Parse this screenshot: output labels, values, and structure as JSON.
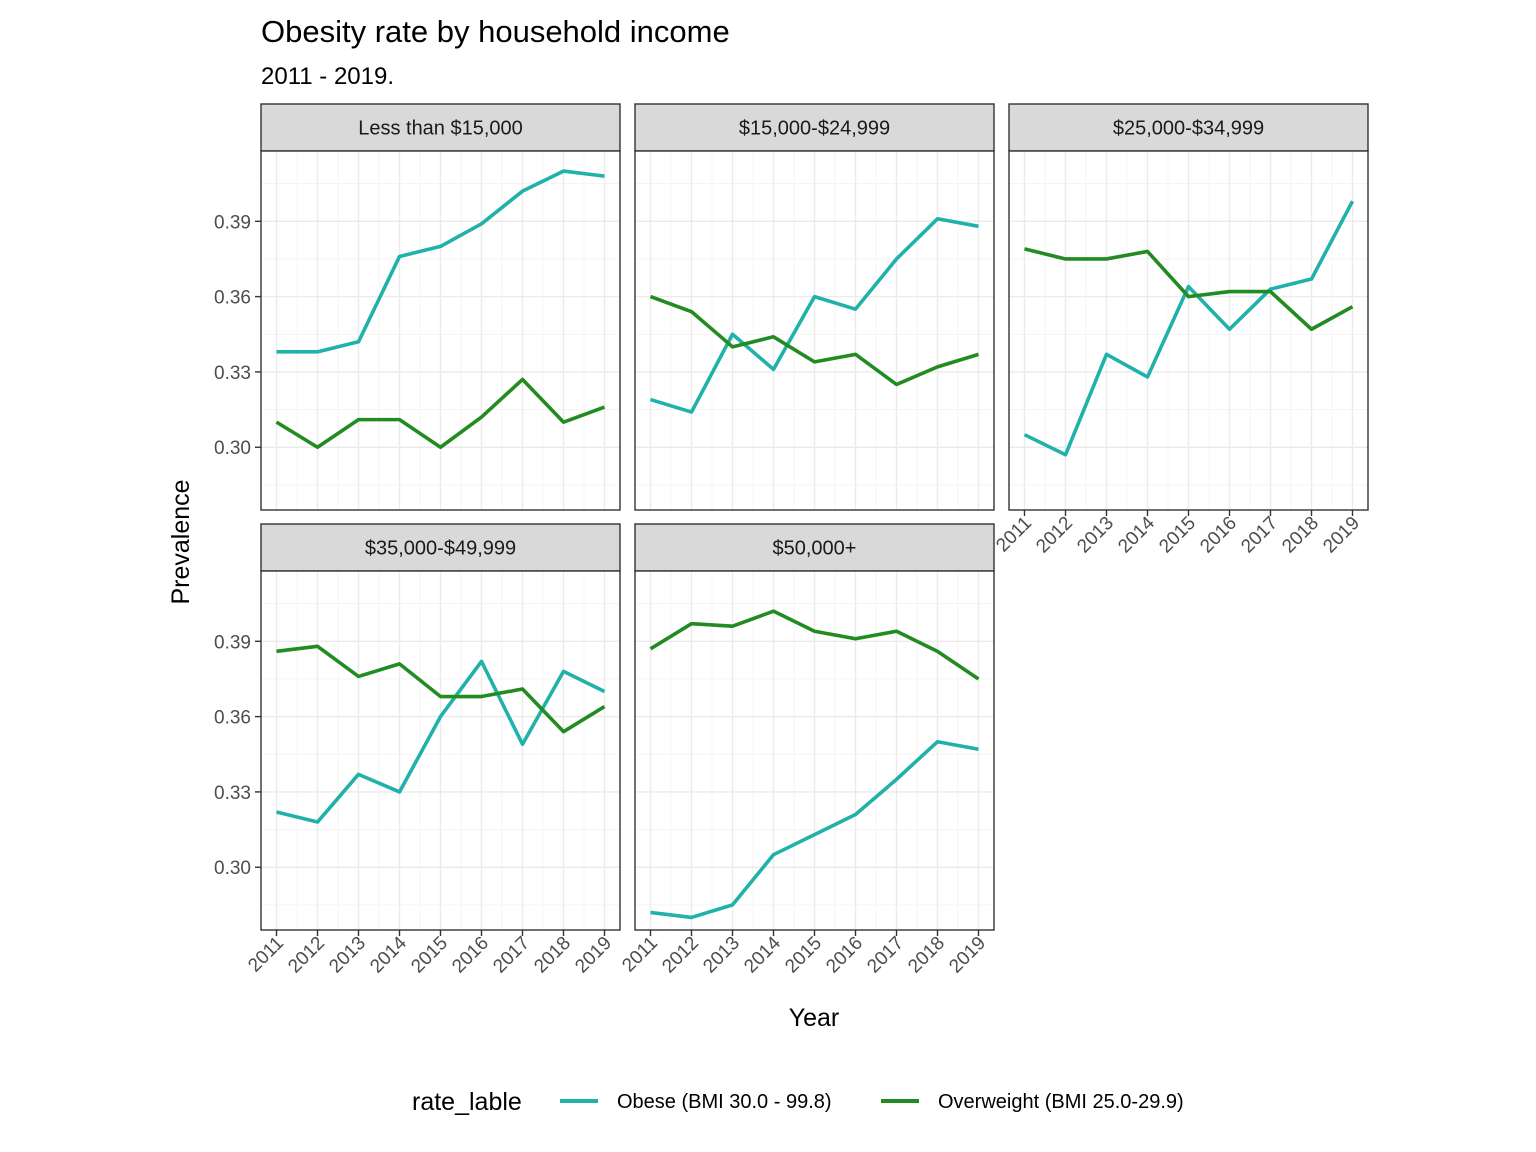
{
  "chart_data": {
    "type": "line",
    "title": "Obesity rate by household income",
    "subtitle": "2011 - 2019.",
    "xlabel": "Year",
    "ylabel": "Prevalence",
    "x": [
      "2011",
      "2012",
      "2013",
      "2014",
      "2015",
      "2016",
      "2017",
      "2018",
      "2019"
    ],
    "y_ticks": [
      "0.30",
      "0.33",
      "0.36",
      "0.39"
    ],
    "ylim": [
      0.275,
      0.418
    ],
    "grid": true,
    "legend": {
      "title": "rate_lable",
      "position": "bottom",
      "entries": [
        {
          "name": "Obese (BMI 30.0 - 99.8)",
          "color": "#20B2AA"
        },
        {
          "name": "Overweight (BMI 25.0-29.9)",
          "color": "#228B22"
        }
      ]
    },
    "facets": [
      {
        "label": "Less than $15,000",
        "series": [
          {
            "name": "Obese (BMI 30.0 - 99.8)",
            "values": [
              0.338,
              0.338,
              0.342,
              0.376,
              0.38,
              0.389,
              0.402,
              0.41,
              0.408
            ]
          },
          {
            "name": "Overweight (BMI 25.0-29.9)",
            "values": [
              0.31,
              0.3,
              0.311,
              0.311,
              0.3,
              0.312,
              0.327,
              0.31,
              0.316
            ]
          }
        ]
      },
      {
        "label": "$15,000-$24,999",
        "series": [
          {
            "name": "Obese (BMI 30.0 - 99.8)",
            "values": [
              0.319,
              0.314,
              0.345,
              0.331,
              0.36,
              0.355,
              0.375,
              0.391,
              0.388
            ]
          },
          {
            "name": "Overweight (BMI 25.0-29.9)",
            "values": [
              0.36,
              0.354,
              0.34,
              0.344,
              0.334,
              0.337,
              0.325,
              0.332,
              0.337
            ]
          }
        ]
      },
      {
        "label": "$25,000-$34,999",
        "series": [
          {
            "name": "Obese (BMI 30.0 - 99.8)",
            "values": [
              0.305,
              0.297,
              0.337,
              0.328,
              0.364,
              0.347,
              0.363,
              0.367,
              0.398
            ]
          },
          {
            "name": "Overweight (BMI 25.0-29.9)",
            "values": [
              0.379,
              0.375,
              0.375,
              0.378,
              0.36,
              0.362,
              0.362,
              0.347,
              0.356
            ]
          }
        ]
      },
      {
        "label": "$35,000-$49,999",
        "series": [
          {
            "name": "Obese (BMI 30.0 - 99.8)",
            "values": [
              0.322,
              0.318,
              0.337,
              0.33,
              0.36,
              0.382,
              0.349,
              0.378,
              0.37
            ]
          },
          {
            "name": "Overweight (BMI 25.0-29.9)",
            "values": [
              0.386,
              0.388,
              0.376,
              0.381,
              0.368,
              0.368,
              0.371,
              0.354,
              0.364
            ]
          }
        ]
      },
      {
        "label": "$50,000+",
        "series": [
          {
            "name": "Obese (BMI 30.0 - 99.8)",
            "values": [
              0.282,
              0.28,
              0.285,
              0.305,
              0.313,
              0.321,
              0.335,
              0.35,
              0.347
            ]
          },
          {
            "name": "Overweight (BMI 25.0-29.9)",
            "values": [
              0.387,
              0.397,
              0.396,
              0.402,
              0.394,
              0.391,
              0.394,
              0.386,
              0.375
            ]
          }
        ]
      }
    ]
  }
}
